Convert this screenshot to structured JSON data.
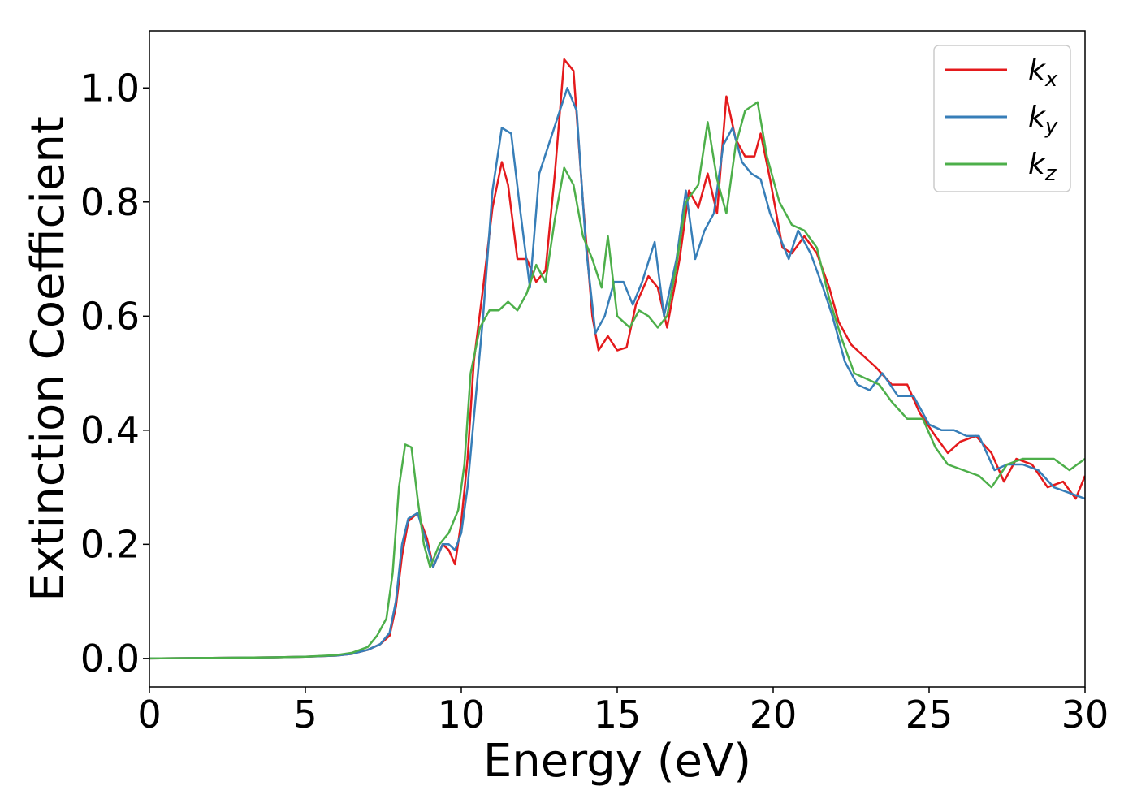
{
  "chart_data": {
    "type": "line",
    "xlabel": "Energy (eV)",
    "ylabel": "Extinction Coefficient",
    "xlim": [
      0,
      30
    ],
    "ylim": [
      -0.05,
      1.1
    ],
    "xticks": [
      0,
      5,
      10,
      15,
      20,
      25,
      30
    ],
    "yticks": [
      0.0,
      0.2,
      0.4,
      0.6,
      0.8,
      1.0
    ],
    "xtick_labels": [
      "0",
      "5",
      "10",
      "15",
      "20",
      "25",
      "30"
    ],
    "ytick_labels": [
      "0.0",
      "0.2",
      "0.4",
      "0.6",
      "0.8",
      "1.0"
    ],
    "grid": false,
    "legend_position": "top-right",
    "series": [
      {
        "name": "k_x",
        "label_main": "k",
        "label_sub": "x",
        "color": "#e41a1c",
        "points": [
          [
            0,
            0.0
          ],
          [
            2,
            0.001
          ],
          [
            4,
            0.002
          ],
          [
            5,
            0.003
          ],
          [
            6,
            0.005
          ],
          [
            6.5,
            0.008
          ],
          [
            7,
            0.015
          ],
          [
            7.4,
            0.025
          ],
          [
            7.7,
            0.04
          ],
          [
            7.9,
            0.09
          ],
          [
            8.1,
            0.18
          ],
          [
            8.3,
            0.24
          ],
          [
            8.6,
            0.255
          ],
          [
            8.9,
            0.21
          ],
          [
            9.1,
            0.16
          ],
          [
            9.4,
            0.2
          ],
          [
            9.6,
            0.19
          ],
          [
            9.8,
            0.165
          ],
          [
            10.0,
            0.24
          ],
          [
            10.2,
            0.35
          ],
          [
            10.4,
            0.52
          ],
          [
            10.7,
            0.65
          ],
          [
            11.0,
            0.79
          ],
          [
            11.3,
            0.87
          ],
          [
            11.5,
            0.83
          ],
          [
            11.8,
            0.7
          ],
          [
            12.1,
            0.7
          ],
          [
            12.4,
            0.66
          ],
          [
            12.7,
            0.68
          ],
          [
            13.0,
            0.85
          ],
          [
            13.3,
            1.05
          ],
          [
            13.6,
            1.03
          ],
          [
            13.9,
            0.8
          ],
          [
            14.2,
            0.6
          ],
          [
            14.4,
            0.54
          ],
          [
            14.7,
            0.565
          ],
          [
            15.0,
            0.54
          ],
          [
            15.3,
            0.545
          ],
          [
            15.6,
            0.62
          ],
          [
            16.0,
            0.67
          ],
          [
            16.3,
            0.65
          ],
          [
            16.6,
            0.58
          ],
          [
            17.0,
            0.7
          ],
          [
            17.3,
            0.82
          ],
          [
            17.6,
            0.79
          ],
          [
            17.9,
            0.85
          ],
          [
            18.2,
            0.78
          ],
          [
            18.5,
            0.985
          ],
          [
            18.8,
            0.91
          ],
          [
            19.1,
            0.88
          ],
          [
            19.4,
            0.88
          ],
          [
            19.6,
            0.92
          ],
          [
            19.9,
            0.84
          ],
          [
            20.3,
            0.72
          ],
          [
            20.6,
            0.71
          ],
          [
            21.0,
            0.74
          ],
          [
            21.4,
            0.71
          ],
          [
            21.8,
            0.65
          ],
          [
            22.1,
            0.59
          ],
          [
            22.5,
            0.55
          ],
          [
            22.9,
            0.53
          ],
          [
            23.3,
            0.51
          ],
          [
            23.8,
            0.48
          ],
          [
            24.3,
            0.48
          ],
          [
            24.7,
            0.43
          ],
          [
            25.2,
            0.39
          ],
          [
            25.6,
            0.36
          ],
          [
            26.0,
            0.38
          ],
          [
            26.5,
            0.39
          ],
          [
            27.0,
            0.36
          ],
          [
            27.4,
            0.31
          ],
          [
            27.8,
            0.35
          ],
          [
            28.3,
            0.34
          ],
          [
            28.8,
            0.3
          ],
          [
            29.3,
            0.31
          ],
          [
            29.7,
            0.28
          ],
          [
            30,
            0.32
          ]
        ]
      },
      {
        "name": "k_y",
        "label_main": "k",
        "label_sub": "y",
        "color": "#377eb8",
        "points": [
          [
            0,
            0.0
          ],
          [
            2,
            0.001
          ],
          [
            4,
            0.002
          ],
          [
            5,
            0.003
          ],
          [
            6,
            0.005
          ],
          [
            6.5,
            0.008
          ],
          [
            7,
            0.015
          ],
          [
            7.4,
            0.025
          ],
          [
            7.7,
            0.045
          ],
          [
            7.9,
            0.1
          ],
          [
            8.1,
            0.2
          ],
          [
            8.3,
            0.245
          ],
          [
            8.6,
            0.255
          ],
          [
            8.9,
            0.2
          ],
          [
            9.1,
            0.16
          ],
          [
            9.4,
            0.2
          ],
          [
            9.6,
            0.2
          ],
          [
            9.8,
            0.19
          ],
          [
            10.0,
            0.22
          ],
          [
            10.2,
            0.3
          ],
          [
            10.4,
            0.42
          ],
          [
            10.7,
            0.6
          ],
          [
            11.0,
            0.82
          ],
          [
            11.3,
            0.93
          ],
          [
            11.6,
            0.92
          ],
          [
            11.9,
            0.78
          ],
          [
            12.2,
            0.65
          ],
          [
            12.5,
            0.85
          ],
          [
            12.8,
            0.9
          ],
          [
            13.1,
            0.95
          ],
          [
            13.4,
            1.0
          ],
          [
            13.7,
            0.96
          ],
          [
            14.0,
            0.72
          ],
          [
            14.3,
            0.57
          ],
          [
            14.6,
            0.6
          ],
          [
            14.9,
            0.66
          ],
          [
            15.2,
            0.66
          ],
          [
            15.5,
            0.62
          ],
          [
            15.8,
            0.66
          ],
          [
            16.2,
            0.73
          ],
          [
            16.5,
            0.6
          ],
          [
            16.9,
            0.7
          ],
          [
            17.2,
            0.82
          ],
          [
            17.5,
            0.7
          ],
          [
            17.8,
            0.75
          ],
          [
            18.1,
            0.78
          ],
          [
            18.4,
            0.9
          ],
          [
            18.7,
            0.93
          ],
          [
            19.0,
            0.87
          ],
          [
            19.3,
            0.85
          ],
          [
            19.6,
            0.84
          ],
          [
            19.9,
            0.78
          ],
          [
            20.2,
            0.74
          ],
          [
            20.5,
            0.7
          ],
          [
            20.8,
            0.75
          ],
          [
            21.2,
            0.71
          ],
          [
            21.6,
            0.65
          ],
          [
            21.9,
            0.6
          ],
          [
            22.3,
            0.52
          ],
          [
            22.7,
            0.48
          ],
          [
            23.1,
            0.47
          ],
          [
            23.5,
            0.5
          ],
          [
            24.0,
            0.46
          ],
          [
            24.5,
            0.46
          ],
          [
            25.0,
            0.41
          ],
          [
            25.4,
            0.4
          ],
          [
            25.8,
            0.4
          ],
          [
            26.2,
            0.39
          ],
          [
            26.6,
            0.39
          ],
          [
            27.1,
            0.33
          ],
          [
            27.5,
            0.34
          ],
          [
            28.0,
            0.34
          ],
          [
            28.5,
            0.33
          ],
          [
            29.0,
            0.3
          ],
          [
            29.5,
            0.29
          ],
          [
            30,
            0.28
          ]
        ]
      },
      {
        "name": "k_z",
        "label_main": "k",
        "label_sub": "z",
        "color": "#4daf4a",
        "points": [
          [
            0,
            0.0
          ],
          [
            2,
            0.001
          ],
          [
            4,
            0.002
          ],
          [
            5,
            0.003
          ],
          [
            6,
            0.006
          ],
          [
            6.5,
            0.01
          ],
          [
            7,
            0.02
          ],
          [
            7.3,
            0.04
          ],
          [
            7.6,
            0.07
          ],
          [
            7.8,
            0.15
          ],
          [
            8.0,
            0.3
          ],
          [
            8.2,
            0.375
          ],
          [
            8.4,
            0.37
          ],
          [
            8.6,
            0.28
          ],
          [
            8.8,
            0.2
          ],
          [
            9.0,
            0.16
          ],
          [
            9.3,
            0.2
          ],
          [
            9.6,
            0.22
          ],
          [
            9.9,
            0.26
          ],
          [
            10.1,
            0.34
          ],
          [
            10.3,
            0.5
          ],
          [
            10.6,
            0.58
          ],
          [
            10.9,
            0.61
          ],
          [
            11.2,
            0.61
          ],
          [
            11.5,
            0.625
          ],
          [
            11.8,
            0.61
          ],
          [
            12.1,
            0.64
          ],
          [
            12.4,
            0.69
          ],
          [
            12.7,
            0.66
          ],
          [
            13.0,
            0.77
          ],
          [
            13.3,
            0.86
          ],
          [
            13.6,
            0.83
          ],
          [
            13.9,
            0.74
          ],
          [
            14.2,
            0.7
          ],
          [
            14.5,
            0.65
          ],
          [
            14.7,
            0.74
          ],
          [
            15.0,
            0.6
          ],
          [
            15.4,
            0.58
          ],
          [
            15.7,
            0.61
          ],
          [
            16.0,
            0.6
          ],
          [
            16.3,
            0.58
          ],
          [
            16.6,
            0.6
          ],
          [
            16.9,
            0.69
          ],
          [
            17.2,
            0.8
          ],
          [
            17.6,
            0.83
          ],
          [
            17.9,
            0.94
          ],
          [
            18.2,
            0.84
          ],
          [
            18.5,
            0.78
          ],
          [
            18.8,
            0.9
          ],
          [
            19.1,
            0.96
          ],
          [
            19.5,
            0.975
          ],
          [
            19.8,
            0.88
          ],
          [
            20.2,
            0.8
          ],
          [
            20.6,
            0.76
          ],
          [
            21.0,
            0.75
          ],
          [
            21.4,
            0.72
          ],
          [
            21.8,
            0.63
          ],
          [
            22.2,
            0.56
          ],
          [
            22.6,
            0.5
          ],
          [
            23.0,
            0.49
          ],
          [
            23.4,
            0.48
          ],
          [
            23.8,
            0.45
          ],
          [
            24.3,
            0.42
          ],
          [
            24.8,
            0.42
          ],
          [
            25.2,
            0.37
          ],
          [
            25.6,
            0.34
          ],
          [
            26.1,
            0.33
          ],
          [
            26.6,
            0.32
          ],
          [
            27.0,
            0.3
          ],
          [
            27.5,
            0.34
          ],
          [
            28.0,
            0.35
          ],
          [
            28.5,
            0.35
          ],
          [
            29.0,
            0.35
          ],
          [
            29.5,
            0.33
          ],
          [
            30,
            0.35
          ]
        ]
      }
    ]
  }
}
